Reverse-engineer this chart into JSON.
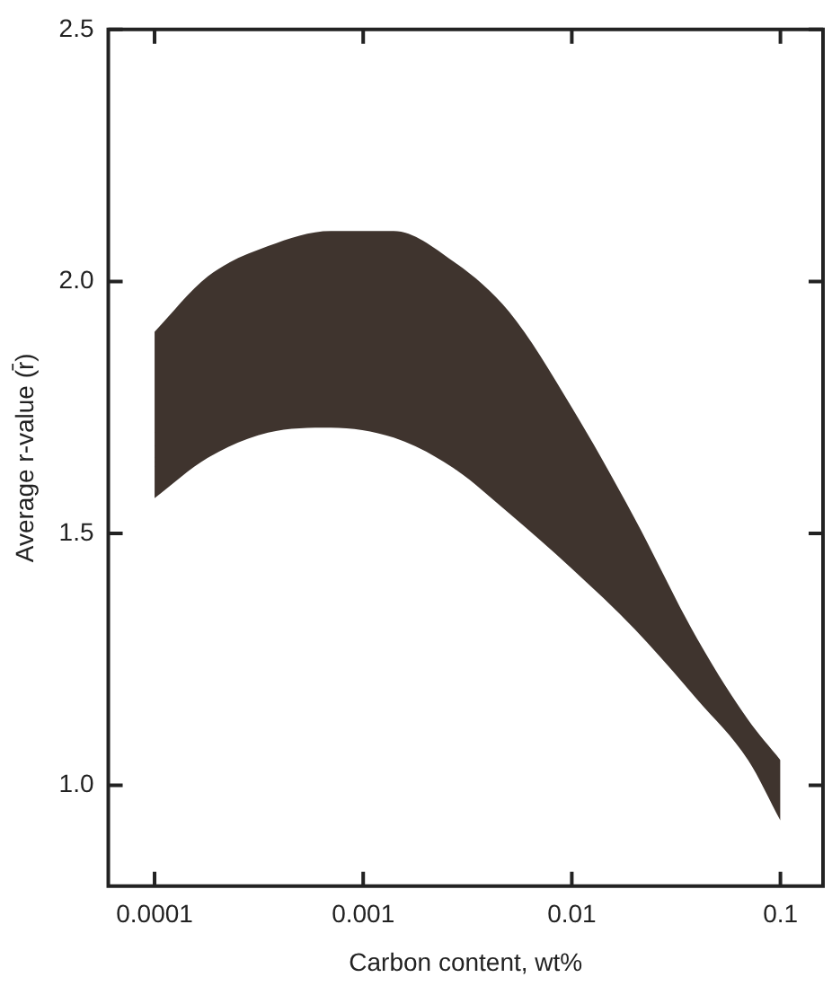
{
  "chart_data": {
    "type": "line",
    "xlabel": "Carbon content, wt%",
    "ylabel": "Average r-value (r̄)",
    "log": "x",
    "xlim": [
      6e-05,
      0.16
    ],
    "xticks": [
      {
        "value": 0.0001,
        "label": "0.0001"
      },
      {
        "value": 0.001,
        "label": "0.001"
      },
      {
        "value": 0.01,
        "label": "0.01"
      },
      {
        "value": 0.1,
        "label": "0.1"
      }
    ],
    "ylim": [
      0.8,
      2.5
    ],
    "yticks": [
      {
        "value": 1,
        "label": "1.0"
      },
      {
        "value": 1.5,
        "label": "1.5"
      },
      {
        "value": 2,
        "label": "2.0"
      },
      {
        "value": 2.5,
        "label": "2.5"
      }
    ],
    "grid": false,
    "legend": false,
    "x": [
      0.0001,
      0.00018,
      0.00035,
      0.0007,
      0.0014,
      0.0027,
      0.005,
      0.01,
      0.02,
      0.04,
      0.07,
      0.1
    ],
    "series": [
      {
        "color": "#3f342e",
        "values": [
          null,
          null,
          null,
          null,
          null,
          null,
          null,
          null,
          null,
          null,
          null,
          null
        ],
        "lower": [
          1.57,
          1.65,
          1.7,
          1.71,
          1.69,
          1.63,
          1.54,
          1.43,
          1.31,
          1.17,
          1.05,
          0.93
        ],
        "upper": [
          1.9,
          2.01,
          2.07,
          2.1,
          2.1,
          2.04,
          1.94,
          1.75,
          1.53,
          1.29,
          1.13,
          1.05
        ]
      }
    ]
  }
}
